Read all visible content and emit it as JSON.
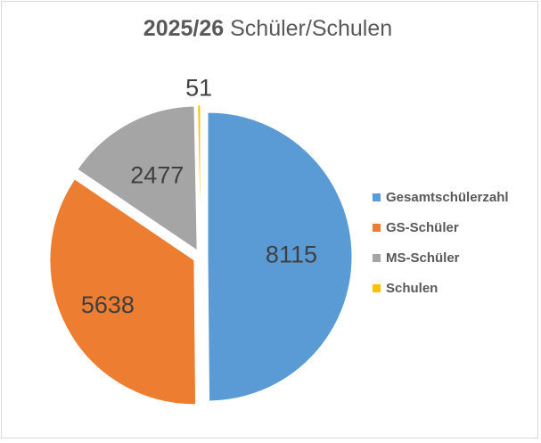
{
  "chart_data": {
    "type": "pie",
    "title_bold": "2025/26",
    "title_rest": " Schüler/Schulen",
    "categories": [
      "Gesamtschülerzahl",
      "GS-Schüler",
      "MS-Schüler",
      "Schulen"
    ],
    "values": [
      8115,
      5638,
      2477,
      51
    ],
    "value_labels": [
      "8115",
      "5638",
      "2477",
      "51"
    ],
    "colors": [
      "#5b9bd5",
      "#ed7d31",
      "#a5a5a5",
      "#ffc000"
    ],
    "legend_position": "right",
    "exploded": true
  }
}
